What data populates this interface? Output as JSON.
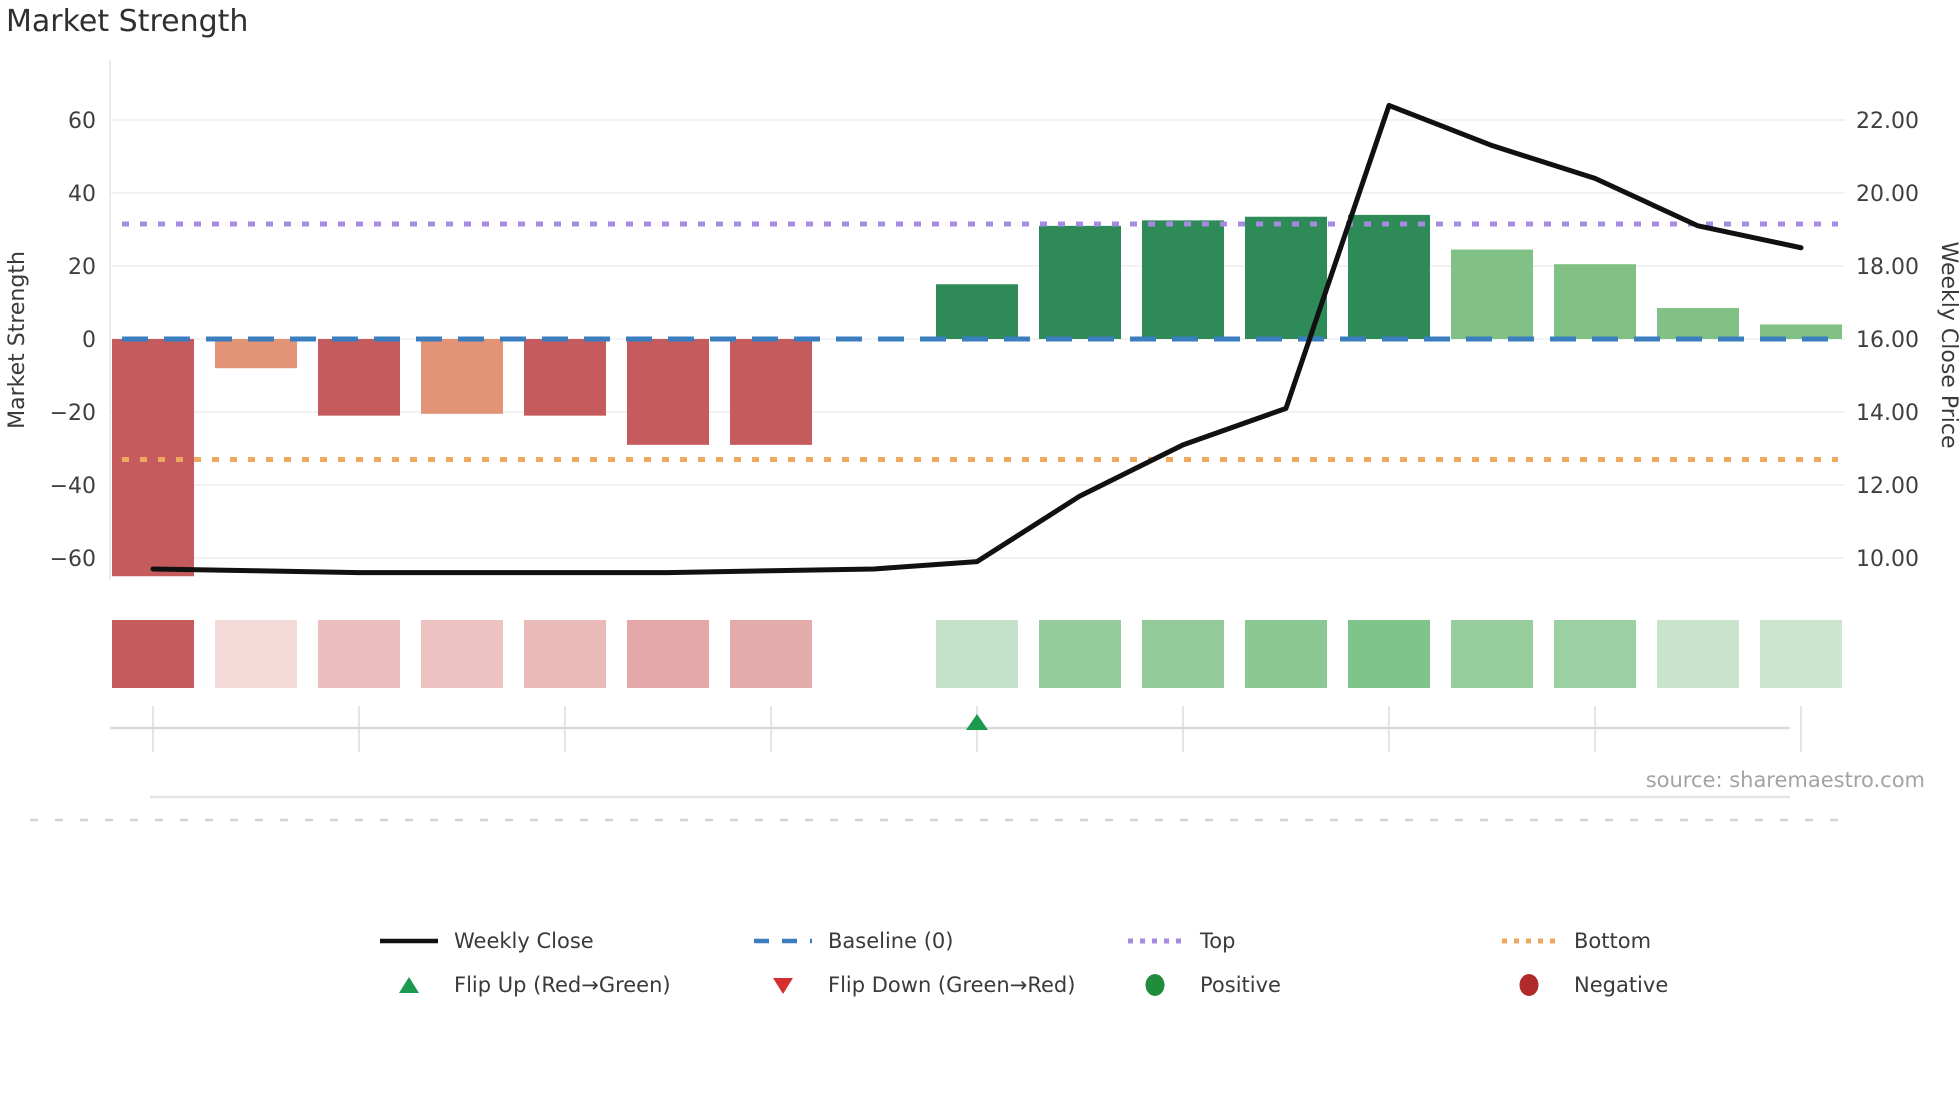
{
  "title": "Market Strength",
  "source": "source: sharemaestro.com",
  "colors": {
    "baseline": "#3a7ebf",
    "top_line": "#a78be0",
    "bottom_line": "#efa95f",
    "weekly_line": "#111111",
    "flip_up": "#1a9a4d",
    "flip_down": "#d62f2f",
    "positive": "#218c3b",
    "negative": "#b02a2a",
    "grid": "#f2f2f2",
    "spine": "#e6e6e6",
    "tick_text": "#3f3f3f",
    "axis_label_text": "#3a3a3a"
  },
  "chart_data": {
    "type": "bar",
    "title": "Market Strength",
    "n_points": 17,
    "left_axis": {
      "label": "Market Strength",
      "lim": [
        -70,
        70
      ],
      "ticks": [
        {
          "label": "60",
          "value": 60
        },
        {
          "label": "40",
          "value": 40
        },
        {
          "label": "20",
          "value": 20
        },
        {
          "label": "0",
          "value": 0
        },
        {
          "label": "−20",
          "value": -20
        },
        {
          "label": "−40",
          "value": -40
        },
        {
          "label": "−60",
          "value": -60
        }
      ]
    },
    "right_axis": {
      "label": "Weekly Close Price",
      "lim": [
        9,
        23
      ],
      "ticks": [
        {
          "label": "22.00",
          "value": 22
        },
        {
          "label": "20.00",
          "value": 20
        },
        {
          "label": "18.00",
          "value": 18
        },
        {
          "label": "16.00",
          "value": 16
        },
        {
          "label": "14.00",
          "value": 14
        },
        {
          "label": "12.00",
          "value": 12
        },
        {
          "label": "10.00",
          "value": 10
        }
      ]
    },
    "series": [
      {
        "name": "Market Strength",
        "type": "bar",
        "axis": "left",
        "values": [
          -65,
          -8,
          -21,
          -20.5,
          -21,
          -29,
          -29,
          0,
          15,
          31,
          32.5,
          33.5,
          34,
          24.5,
          20.5,
          8.5,
          4
        ],
        "bar_colors": [
          "#c65b5d",
          "#e39376",
          "#c65b5d",
          "#e39376",
          "#c65b5d",
          "#c65b5d",
          "#c65b5d",
          null,
          "#2e8b57",
          "#2e8b57",
          "#2e8b57",
          "#2e8b57",
          "#2e8b57",
          "#82c186",
          "#82c186",
          "#82c186",
          "#82c186"
        ]
      },
      {
        "name": "Weekly Close",
        "type": "line",
        "axis": "right",
        "values": [
          9.7,
          9.65,
          9.6,
          9.6,
          9.6,
          9.6,
          9.65,
          9.7,
          9.9,
          11.7,
          13.1,
          14.1,
          22.4,
          21.3,
          20.4,
          19.1,
          18.5
        ]
      }
    ],
    "reference_lines": [
      {
        "name": "Baseline (0)",
        "value": 0,
        "style": "dashed",
        "color": "#3a7ebf",
        "dash": "26 16",
        "width": 5
      },
      {
        "name": "Top",
        "value": 31.5,
        "style": "dotted",
        "color": "#a78be0",
        "dash": "7 11",
        "width": 5
      },
      {
        "name": "Bottom",
        "value": -33,
        "style": "dotted",
        "color": "#efa95f",
        "dash": "7 11",
        "width": 5
      }
    ],
    "heatmap_strip": {
      "cell_colors": [
        "#c65b5d",
        "#f3d9d7",
        "#eabfbd",
        "#ecc3c0",
        "#e9bab8",
        "#e2a7a6",
        "#e3abaa",
        null,
        "#c4e2c9",
        "#95cc9c",
        "#92ca99",
        "#8cc893",
        "#7fc48a",
        "#97ce9e",
        "#9bd0a2",
        "#c8e4cd",
        "#cbe5cf"
      ]
    },
    "flip_markers": [
      {
        "direction": "up",
        "index": 8,
        "color": "#1a9a4d"
      }
    ],
    "x_tick_labels_visible": false
  },
  "legend": {
    "items": [
      {
        "swatch": "line",
        "color": "#111111",
        "label": "Weekly Close"
      },
      {
        "swatch": "dash",
        "color": "#3a7ebf",
        "label": "Baseline (0)"
      },
      {
        "swatch": "dot",
        "color": "#a78be0",
        "label": "Top"
      },
      {
        "swatch": "dot",
        "color": "#efa95f",
        "label": "Bottom"
      },
      {
        "swatch": "triangle-up",
        "color": "#1a9a4d",
        "label": "Flip Up (Red→Green)"
      },
      {
        "swatch": "triangle-down",
        "color": "#d62f2f",
        "label": "Flip Down (Green→Red)"
      },
      {
        "swatch": "circle",
        "color": "#218c3b",
        "label": "Positive"
      },
      {
        "swatch": "circle",
        "color": "#b02a2a",
        "label": "Negative"
      }
    ]
  }
}
